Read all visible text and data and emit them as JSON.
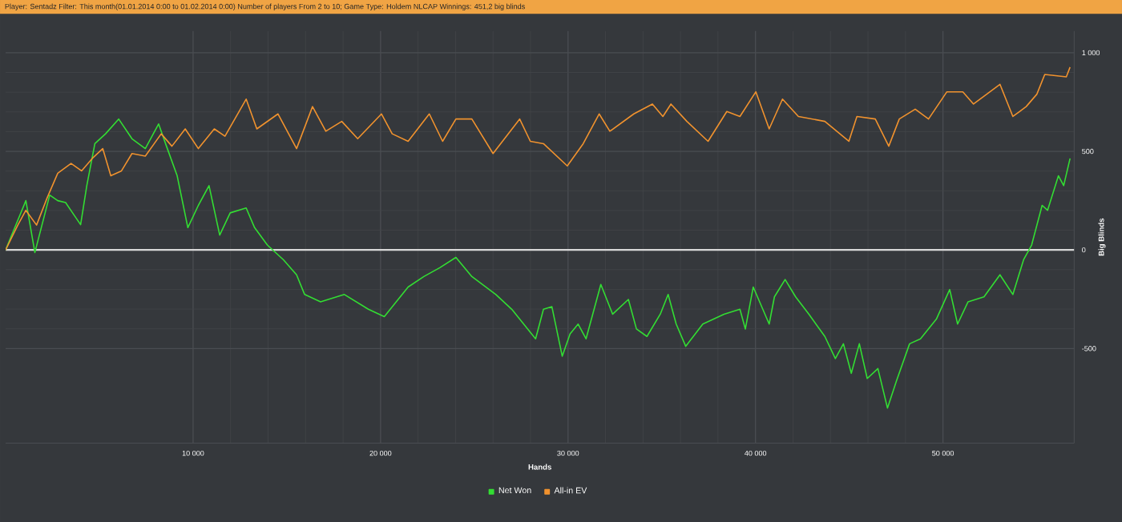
{
  "chart_data": {
    "type": "line",
    "title": "Player: Sentadz  Filter: This month(01.01.2014 0:00 to 01.02.2014 0:00) Number of players From 2 to 10; Game Type: Holdem NLCAP  Winnings: 451,2 big blinds",
    "xlabel": "Hands",
    "ylabel": "Big Blinds",
    "xlim": [
      0,
      57000
    ],
    "ylim": [
      -980,
      1110
    ],
    "xticks": [
      {
        "value": 10000,
        "label": "10 000"
      },
      {
        "value": 20000,
        "label": "20 000"
      },
      {
        "value": 30000,
        "label": "30 000"
      },
      {
        "value": 40000,
        "label": "40 000"
      },
      {
        "value": 50000,
        "label": "50 000"
      }
    ],
    "yticks": [
      {
        "value": -500,
        "label": "-500"
      },
      {
        "value": 0,
        "label": "0"
      },
      {
        "value": 500,
        "label": "500"
      },
      {
        "value": 1000,
        "label": "1 000"
      }
    ],
    "ref_lines": [
      {
        "axis": "y",
        "value": 0,
        "label": null,
        "color": "#d8d8d8"
      }
    ],
    "grid": true,
    "legend": "bottom",
    "marker": "none",
    "line_style": "solid",
    "series": [
      {
        "name": "Net Won",
        "color": "#33dd33",
        "x": [
          0,
          1080,
          1560,
          2350,
          2780,
          3200,
          4000,
          4330,
          4760,
          5330,
          6030,
          6740,
          7450,
          8160,
          8580,
          9150,
          9720,
          10280,
          10850,
          11420,
          11980,
          12830,
          13280,
          13960,
          14820,
          15520,
          15950,
          16800,
          18070,
          19350,
          20200,
          21470,
          22310,
          23160,
          24020,
          24870,
          26150,
          27000,
          28270,
          28690,
          29140,
          29690,
          30110,
          30540,
          30960,
          31390,
          31750,
          32380,
          33220,
          33650,
          34210,
          34920,
          35340,
          35770,
          36280,
          37190,
          38320,
          39170,
          39460,
          39880,
          40730,
          41010,
          41580,
          42140,
          42850,
          43700,
          44260,
          44690,
          45110,
          45540,
          45960,
          46530,
          47040,
          47520,
          48220,
          48800,
          49650,
          50360,
          50780,
          51340,
          52190,
          53040,
          53730,
          54300,
          54730,
          55290,
          55580,
          56160,
          56440,
          56780
        ],
        "values": [
          0,
          250,
          -13,
          278,
          250,
          240,
          128,
          326,
          539,
          589,
          664,
          564,
          514,
          639,
          526,
          376,
          113,
          226,
          326,
          75,
          188,
          213,
          113,
          25,
          -50,
          -126,
          -226,
          -263,
          -226,
          -301,
          -338,
          -188,
          -135,
          -90,
          -38,
          -135,
          -226,
          -301,
          -451,
          -301,
          -288,
          -539,
          -426,
          -376,
          -451,
          -301,
          -175,
          -326,
          -251,
          -401,
          -439,
          -326,
          -226,
          -376,
          -489,
          -376,
          -326,
          -301,
          -401,
          -188,
          -376,
          -238,
          -150,
          -238,
          -326,
          -439,
          -551,
          -476,
          -626,
          -476,
          -652,
          -602,
          -802,
          -664,
          -476,
          -451,
          -351,
          -201,
          -376,
          -263,
          -238,
          -126,
          -226,
          -50,
          25,
          226,
          201,
          376,
          326,
          464
        ]
      },
      {
        "name": "All-in EV",
        "color": "#f0922e",
        "x": [
          0,
          650,
          1080,
          1650,
          2210,
          2780,
          3490,
          4050,
          4620,
          5180,
          5610,
          6180,
          6740,
          7450,
          8300,
          8870,
          9580,
          10280,
          11130,
          11700,
          12830,
          13400,
          14530,
          15520,
          16370,
          17080,
          17930,
          18780,
          20050,
          20620,
          21470,
          22600,
          23310,
          24020,
          24870,
          26000,
          27420,
          27990,
          28690,
          29960,
          30810,
          31660,
          32230,
          33510,
          34500,
          35060,
          35490,
          36340,
          37470,
          38470,
          39170,
          40020,
          40730,
          41440,
          42290,
          43700,
          44980,
          45410,
          46390,
          47110,
          47670,
          48520,
          49230,
          50210,
          51060,
          51630,
          53040,
          53730,
          54440,
          55010,
          55430,
          56580,
          56780
        ],
        "values": [
          0,
          126,
          201,
          126,
          263,
          389,
          439,
          401,
          464,
          514,
          376,
          401,
          489,
          476,
          589,
          526,
          614,
          514,
          614,
          577,
          765,
          614,
          690,
          514,
          727,
          602,
          652,
          564,
          690,
          589,
          551,
          690,
          551,
          664,
          664,
          489,
          664,
          551,
          539,
          426,
          539,
          690,
          602,
          690,
          740,
          677,
          740,
          652,
          551,
          702,
          677,
          802,
          614,
          765,
          677,
          652,
          551,
          677,
          664,
          526,
          664,
          714,
          664,
          802,
          802,
          740,
          840,
          677,
          727,
          790,
          890,
          878,
          927
        ]
      }
    ]
  }
}
